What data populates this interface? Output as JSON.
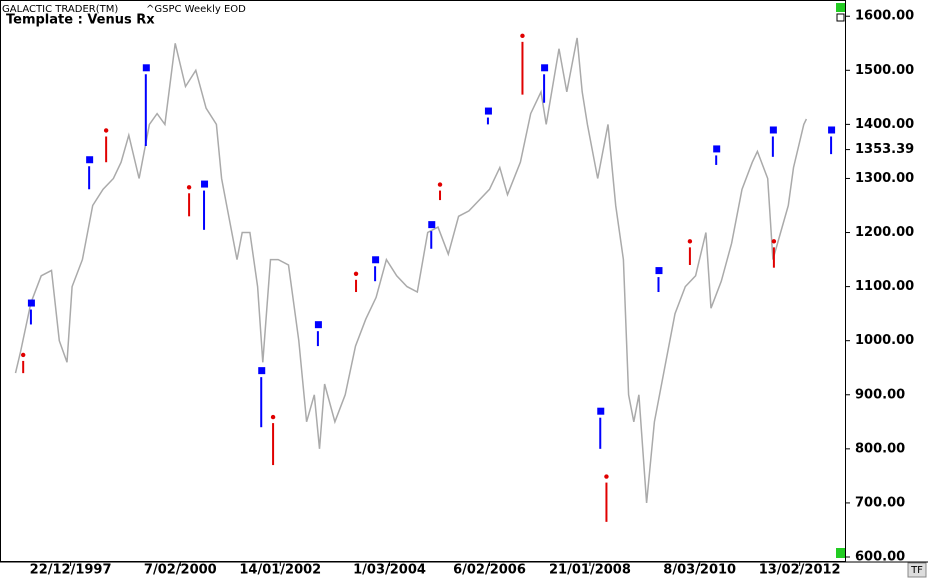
{
  "chart_data": {
    "type": "line",
    "header": "GALACTIC TRADER(TM)",
    "subtitle": "^GSPC Weekly EOD",
    "title": "Template : Venus Rx",
    "corner": "TF",
    "color": "#aaaaaa",
    "x": [
      1996.9,
      1997.0,
      1997.2,
      1997.4,
      1997.6,
      1997.75,
      1997.9,
      1998.0,
      1998.2,
      1998.4,
      1998.6,
      1998.8,
      1998.95,
      1999.1,
      1999.3,
      1999.5,
      1999.65,
      1999.8,
      2000.0,
      2000.2,
      2000.4,
      2000.6,
      2000.8,
      2000.9,
      2001.0,
      2001.2,
      2001.3,
      2001.45,
      2001.6,
      2001.7,
      2001.85,
      2002.0,
      2002.2,
      2002.4,
      2002.55,
      2002.7,
      2002.8,
      2002.9,
      2003.1,
      2003.3,
      2003.5,
      2003.7,
      2003.9,
      2004.1,
      2004.3,
      2004.5,
      2004.7,
      2004.9,
      2005.1,
      2005.3,
      2005.5,
      2005.7,
      2005.9,
      2006.1,
      2006.3,
      2006.45,
      2006.7,
      2006.9,
      2007.1,
      2007.2,
      2007.45,
      2007.6,
      2007.8,
      2007.9,
      2008.0,
      2008.2,
      2008.4,
      2008.55,
      2008.7,
      2008.8,
      2008.9,
      2009.0,
      2009.15,
      2009.3,
      2009.5,
      2009.7,
      2009.9,
      2010.1,
      2010.3,
      2010.4,
      2010.6,
      2010.8,
      2011.0,
      2011.2,
      2011.3,
      2011.5,
      2011.6,
      2011.75,
      2011.9,
      2012.0,
      2012.2,
      2012.25
    ],
    "values": [
      940,
      980,
      1070,
      1120,
      1130,
      1000,
      960,
      1100,
      1150,
      1250,
      1280,
      1300,
      1330,
      1380,
      1300,
      1400,
      1420,
      1400,
      1550,
      1470,
      1500,
      1430,
      1400,
      1300,
      1250,
      1150,
      1200,
      1200,
      1100,
      960,
      1150,
      1150,
      1140,
      1000,
      850,
      900,
      800,
      920,
      850,
      900,
      990,
      1040,
      1080,
      1150,
      1120,
      1100,
      1090,
      1200,
      1210,
      1160,
      1230,
      1240,
      1260,
      1280,
      1320,
      1270,
      1330,
      1420,
      1460,
      1400,
      1540,
      1460,
      1560,
      1460,
      1400,
      1300,
      1400,
      1250,
      1150,
      900,
      850,
      900,
      700,
      850,
      950,
      1050,
      1100,
      1120,
      1200,
      1060,
      1110,
      1180,
      1280,
      1330,
      1350,
      1300,
      1150,
      1200,
      1250,
      1320,
      1400,
      1410
    ],
    "markers": [
      {
        "shape": "square",
        "color": "#0000ff",
        "x": [
          1997.2,
          1998.33,
          1999.43,
          2000.56,
          2001.67,
          2002.77,
          2003.88,
          2004.97,
          2006.07,
          2007.16,
          2008.25,
          2009.38,
          2010.5,
          2011.6,
          2012.73
        ],
        "values": [
          1065,
          1330,
          1500,
          1285,
          940,
          1025,
          1145,
          1210,
          1420,
          1500,
          865,
          1125,
          1350,
          1385,
          1385
        ],
        "lows": [
          1030,
          1280,
          1360,
          1205,
          840,
          990,
          1110,
          1170,
          1400,
          1440,
          800,
          1090,
          1325,
          1340,
          1345
        ]
      },
      {
        "shape": "dot",
        "color": "#e00000",
        "x": [
          1997.05,
          1998.66,
          2000.27,
          2001.9,
          2003.51,
          2005.14,
          2006.74,
          2008.37,
          2009.99,
          2011.62
        ],
        "values": [
          970,
          1385,
          1280,
          855,
          1120,
          1285,
          1560,
          745,
          1180,
          1180
        ],
        "lows": [
          940,
          1330,
          1230,
          770,
          1090,
          1260,
          1455,
          665,
          1140,
          1135
        ]
      }
    ],
    "last_price": 1353.39,
    "xlim": [
      1996.6,
      2013.0
    ],
    "xticks": [
      {
        "value": 1997.97,
        "label": "22/12/1997"
      },
      {
        "value": 2000.1,
        "label": "7/02/2000"
      },
      {
        "value": 2002.04,
        "label": "14/01/2002"
      },
      {
        "value": 2004.16,
        "label": "1/03/2004"
      },
      {
        "value": 2006.1,
        "label": "6/02/2006"
      },
      {
        "value": 2008.05,
        "label": "21/01/2008"
      },
      {
        "value": 2010.18,
        "label": "8/03/2010"
      },
      {
        "value": 2012.12,
        "label": "13/02/2012"
      }
    ],
    "ylim": [
      600,
      1630
    ],
    "yticks": [
      {
        "value": 600,
        "label": "600.00"
      },
      {
        "value": 700,
        "label": "700.00"
      },
      {
        "value": 800,
        "label": "800.00"
      },
      {
        "value": 900,
        "label": "900.00"
      },
      {
        "value": 1000,
        "label": "1000.00"
      },
      {
        "value": 1100,
        "label": "1100.00"
      },
      {
        "value": 1200,
        "label": "1200.00"
      },
      {
        "value": 1300,
        "label": "1300.00"
      },
      {
        "value": 1400,
        "label": "1400.00"
      },
      {
        "value": 1500,
        "label": "1500.00"
      },
      {
        "value": 1600,
        "label": "1600.00"
      }
    ]
  }
}
